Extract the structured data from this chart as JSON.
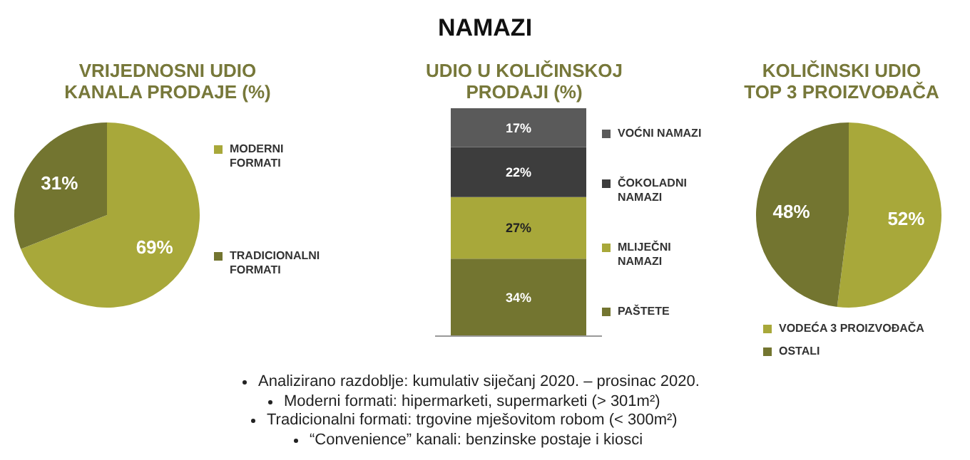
{
  "chart_data": [
    {
      "type": "pie",
      "title": "VRIJEDNOSNI UDIO\nKANALA PRODAJE (%)",
      "annotations": [
        "NAMAZI"
      ],
      "categories": [
        "MODERNI FORMATI",
        "TRADICIONALNI FORMATI"
      ],
      "values": [
        69,
        31
      ],
      "value_labels": [
        "69%",
        "31%"
      ],
      "colors": [
        "#a8a83a",
        "#737530"
      ],
      "legend": "right"
    },
    {
      "type": "bar",
      "title": "UDIO U KOLIČINSKOJ\nPRODAJI (%)",
      "categories": [
        null
      ],
      "stacked": true,
      "legend": "right",
      "series": [
        {
          "name": "PAŠTETE",
          "color": "#737530",
          "values": [
            34
          ],
          "value_labels": [
            "34%"
          ]
        },
        {
          "name": "MLIJEČNI NAMAZI",
          "color": "#a8a83a",
          "values": [
            27
          ],
          "value_labels": [
            "27%"
          ]
        },
        {
          "name": "ČOKOLADNI NAMAZI",
          "color": "#3d3d3d",
          "values": [
            22
          ],
          "value_labels": [
            "22%"
          ]
        },
        {
          "name": "VOĆNI NAMAZI",
          "color": "#5a5a5a",
          "values": [
            17
          ],
          "value_labels": [
            "17%"
          ]
        }
      ],
      "annotations": [
        "Analizirano razdoblje: kumulativ siječanj 2020. – prosinac 2020.",
        "Moderni formati: hipermarketi, supermarketi (> 301m²)",
        "Tradicionalni formati: trgovine mješovitom robom (< 300m²)",
        "“Convenience” kanali: benzinske postaje i kiosci"
      ]
    },
    {
      "type": "pie",
      "title": "KOLIČINSKI UDIO\nTOP 3 PROIZVOĐAČA",
      "categories": [
        "VODEĆA 3 PROIZVOĐAČA",
        "OSTALI"
      ],
      "values": [
        52,
        48
      ],
      "value_labels": [
        "52%",
        "48%"
      ],
      "colors": [
        "#a8a83a",
        "#737530"
      ],
      "legend": "bottom"
    }
  ]
}
